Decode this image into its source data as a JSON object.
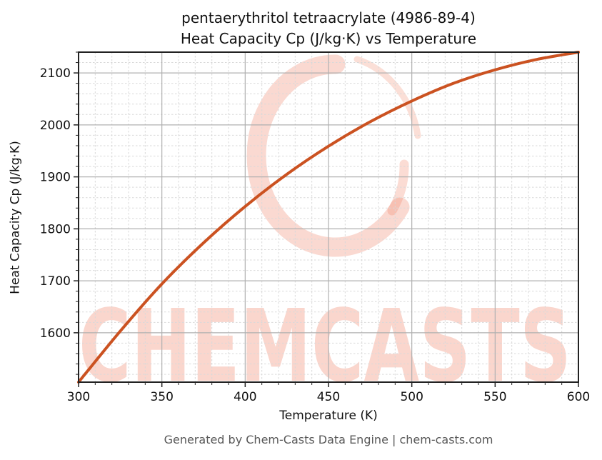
{
  "title": {
    "line1": "pentaerythritol tetraacrylate (4986-89-4)",
    "line2": "Heat Capacity Cp (J/kg·K) vs Temperature"
  },
  "watermark": {
    "text": "CHEMCASTS",
    "brand_color": "#ee7858"
  },
  "footer": {
    "text": "Generated by Chem-Casts Data Engine | chem-casts.com"
  },
  "chart_data": {
    "type": "line",
    "title": "pentaerythritol tetraacrylate (4986-89-4) Heat Capacity Cp (J/kg·K) vs Temperature",
    "xlabel": "Temperature (K)",
    "ylabel": "Heat Capacity Cp (J/kg·K)",
    "x": [
      300,
      325,
      350,
      375,
      400,
      425,
      450,
      475,
      500,
      525,
      550,
      575,
      600
    ],
    "y": [
      1505,
      1603,
      1694,
      1773,
      1843,
      1905,
      1959,
      2006,
      2046,
      2080,
      2106,
      2126,
      2140
    ],
    "xlim": [
      300,
      600
    ],
    "ylim": [
      1505,
      2140
    ],
    "x_ticks": [
      300,
      350,
      400,
      450,
      500,
      550,
      600
    ],
    "y_ticks": [
      1600,
      1700,
      1800,
      1900,
      2000,
      2100
    ],
    "x_minor_step": 10,
    "y_minor_step": 20,
    "grid": {
      "major": true,
      "minor": true,
      "major_color": "#b0b0b0",
      "minor_color": "#d9d9d9"
    },
    "line_color": "#cb5221",
    "line_width": 4,
    "legend": "none"
  }
}
